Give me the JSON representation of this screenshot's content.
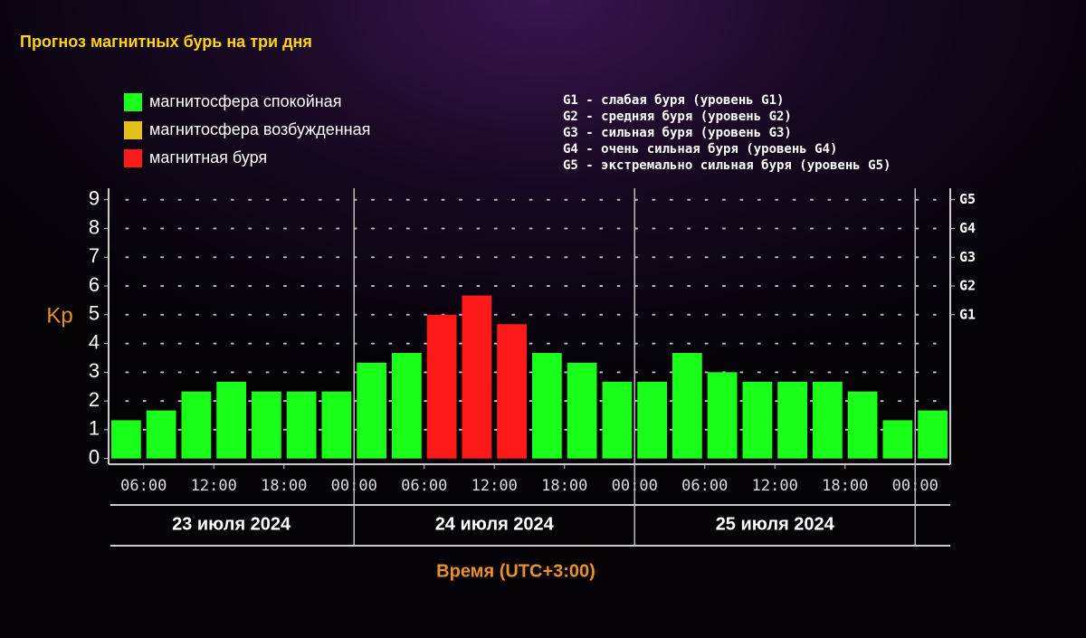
{
  "chart_data": {
    "type": "bar",
    "title": "Прогноз магнитных бурь на три дня",
    "legend": [
      {
        "label": "магнитосфера спокойная",
        "color": "#1aff1a"
      },
      {
        "label": "магнитосфера возбужденная",
        "color": "#e6c01a"
      },
      {
        "label": "магнитная буря",
        "color": "#ff1a1a"
      }
    ],
    "storm_levels": [
      "G1 - слабая буря (уровень G1)",
      "G2 - средняя буря (уровень G2)",
      "G3 - сильная буря (уровень G3)",
      "G4 - очень сильная буря (уровень G4)",
      "G5 - экстремально сильная буря (уровень G5)"
    ],
    "ylabel": "Kp",
    "xlabel": "Время (UTC+3:00)",
    "categories": [
      null,
      null,
      null,
      null,
      null,
      null,
      null,
      null,
      null,
      null,
      null,
      null,
      null,
      null,
      null,
      null,
      null,
      null,
      null,
      null,
      null,
      null,
      null,
      null
    ],
    "values": [
      1.33,
      1.67,
      2.33,
      2.67,
      2.33,
      2.33,
      2.33,
      3.33,
      3.67,
      5,
      5.67,
      4.67,
      3.67,
      3.33,
      2.67,
      2.67,
      3.67,
      3,
      2.67,
      2.67,
      2.67,
      2.33,
      1.33,
      1.67
    ],
    "colors": [
      "#1aff1a",
      "#1aff1a",
      "#1aff1a",
      "#1aff1a",
      "#1aff1a",
      "#1aff1a",
      "#1aff1a",
      "#1aff1a",
      "#1aff1a",
      "#ff1a1a",
      "#ff1a1a",
      "#ff1a1a",
      "#1aff1a",
      "#1aff1a",
      "#1aff1a",
      "#1aff1a",
      "#1aff1a",
      "#1aff1a",
      "#1aff1a",
      "#1aff1a",
      "#1aff1a",
      "#1aff1a",
      "#1aff1a",
      "#1aff1a"
    ],
    "ylim": [
      -0.2,
      9.4
    ],
    "yticks": [
      0,
      1,
      2,
      3,
      4,
      5,
      6,
      7,
      8,
      9
    ],
    "y2lim": [
      -0.2,
      9.4
    ],
    "y2ticks": [
      {
        "value": 5,
        "label": "G1"
      },
      {
        "value": 6,
        "label": "G2"
      },
      {
        "value": 7,
        "label": "G3"
      },
      {
        "value": 8,
        "label": "G4"
      },
      {
        "value": 9,
        "label": "G5"
      }
    ],
    "x_tick_labels": [
      "06:00",
      "12:00",
      "18:00",
      "00:00",
      "06:00",
      "12:00",
      "18:00",
      "00:00",
      "06:00",
      "12:00",
      "18:00",
      "00:00"
    ],
    "days": [
      "23 июля 2024",
      "24 июля 2024",
      "25 июля 2024"
    ],
    "grid": true
  }
}
